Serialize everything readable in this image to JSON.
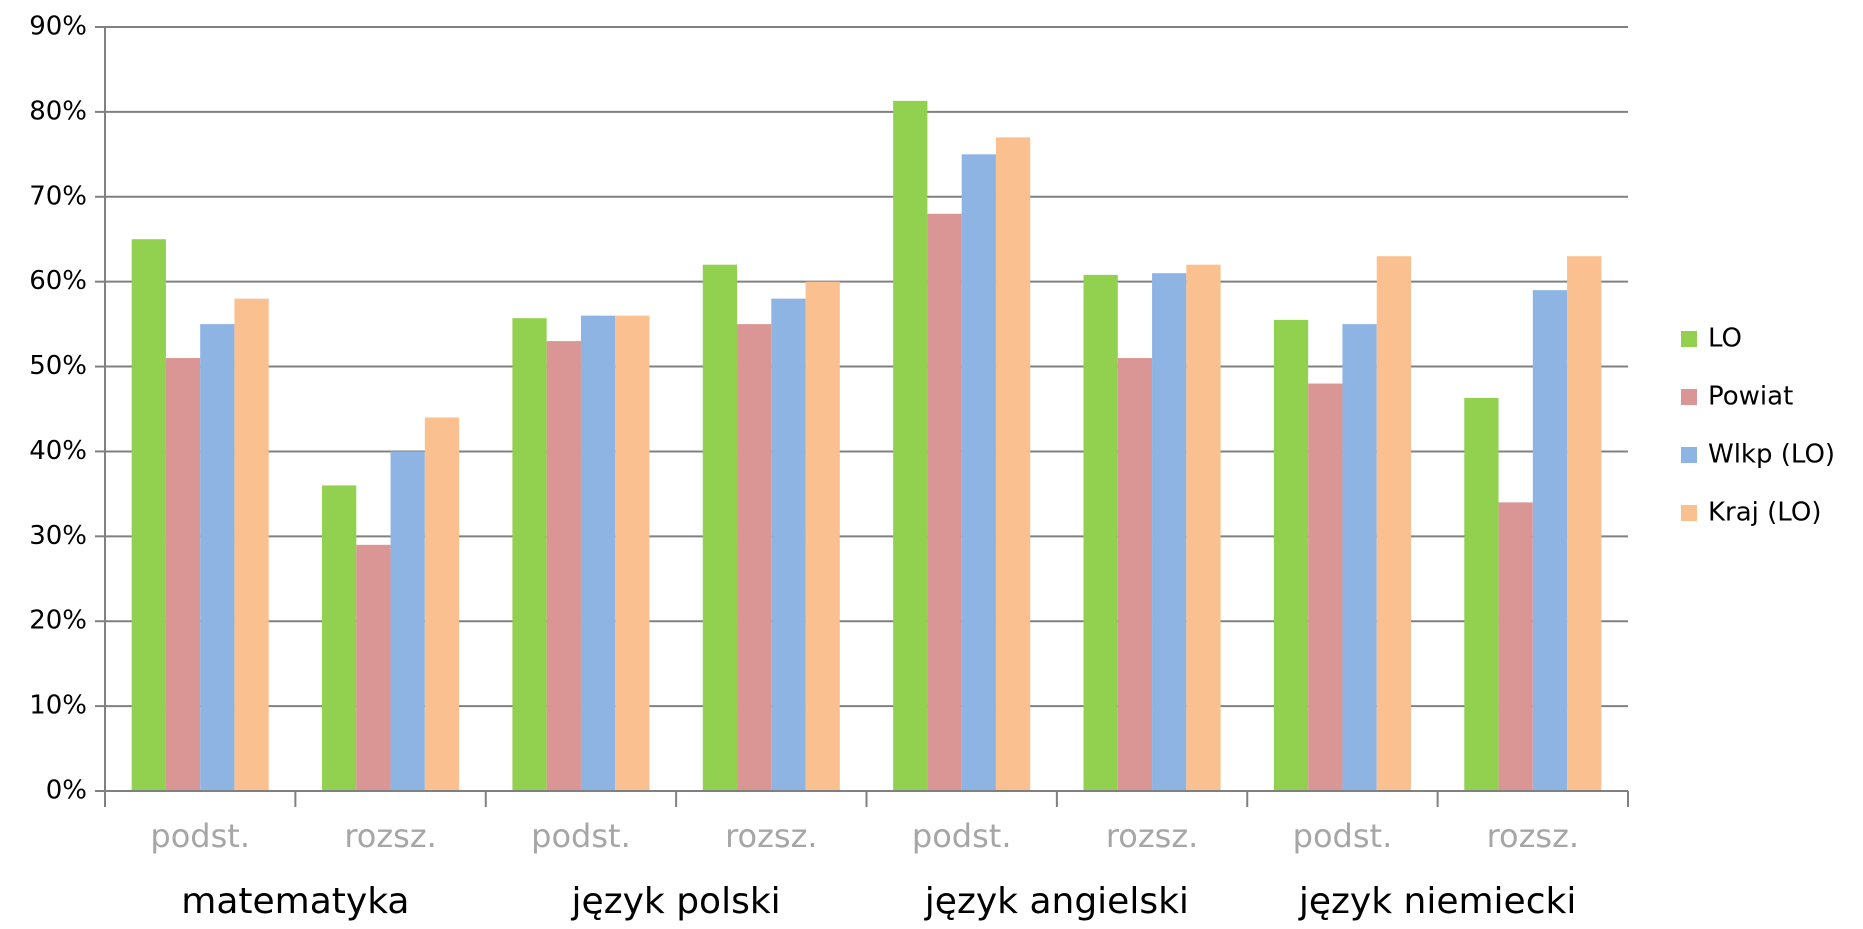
{
  "chart_data": {
    "type": "bar",
    "categories": [
      "podst.",
      "rozsz.",
      "podst.",
      "rozsz.",
      "podst.",
      "rozsz.",
      "podst.",
      "rozsz."
    ],
    "group_labels": [
      "matematyka",
      "język polski",
      "język angielski",
      "język niemiecki"
    ],
    "series": [
      {
        "name": "LO",
        "color": "#92d050",
        "values": [
          65,
          36,
          55.7,
          62,
          81.3,
          60.8,
          55.5,
          46.3
        ]
      },
      {
        "name": "Powiat",
        "color": "#d99694",
        "values": [
          51,
          29,
          53,
          55,
          68,
          51,
          48,
          34
        ]
      },
      {
        "name": "Wlkp (LO)",
        "color": "#8eb4e3",
        "values": [
          55,
          40,
          56,
          58,
          75,
          61,
          55,
          59
        ]
      },
      {
        "name": "Kraj (LO)",
        "color": "#fac090",
        "values": [
          58,
          44,
          56,
          60,
          77,
          62,
          63,
          63
        ]
      }
    ],
    "ylim": [
      0,
      90
    ],
    "yticks": [
      {
        "value": 0,
        "label": "0%"
      },
      {
        "value": 10,
        "label": "10%"
      },
      {
        "value": 20,
        "label": "20%"
      },
      {
        "value": 30,
        "label": "30%"
      },
      {
        "value": 40,
        "label": "40%"
      },
      {
        "value": 50,
        "label": "50%"
      },
      {
        "value": 60,
        "label": "60%"
      },
      {
        "value": 70,
        "label": "70%"
      },
      {
        "value": 80,
        "label": "80%"
      },
      {
        "value": 90,
        "label": "90%"
      }
    ],
    "grid": true,
    "legend": "right"
  }
}
